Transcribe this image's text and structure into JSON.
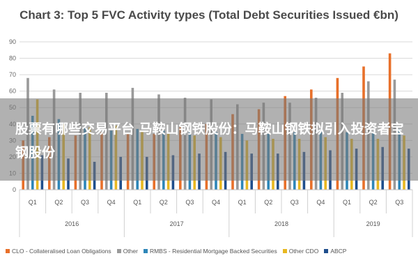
{
  "chart_data": {
    "type": "bar",
    "title": "Chart 3: Top 5 FVC Activity types (Total Debt Securities Issued €bn)",
    "xlabel": "",
    "ylabel": "",
    "ylim": [
      0,
      90
    ],
    "yticks": [
      0,
      10,
      20,
      30,
      40,
      50,
      60,
      70,
      80,
      90
    ],
    "grid": true,
    "legend_position": "bottom",
    "categories": [
      "Q1",
      "Q2",
      "Q3",
      "Q4",
      "Q1",
      "Q2",
      "Q3",
      "Q4",
      "Q1",
      "Q2",
      "Q3",
      "Q4",
      "Q1",
      "Q2",
      "Q3"
    ],
    "groups": [
      {
        "label": "2016",
        "span": 4
      },
      {
        "label": "2017",
        "span": 4
      },
      {
        "label": "2018",
        "span": 4
      },
      {
        "label": "2019",
        "span": 3
      }
    ],
    "series": [
      {
        "name": "CLO - Collateralised Loan Obligations",
        "color": "#e8702a",
        "values": [
          30,
          32,
          33,
          35,
          34,
          34,
          38,
          40,
          46,
          49,
          57,
          61,
          68,
          75,
          83
        ]
      },
      {
        "name": "Other",
        "color": "#9a9a9a",
        "values": [
          68,
          61,
          59,
          59,
          62,
          58,
          56,
          55,
          52,
          53,
          53,
          56,
          59,
          66,
          67
        ]
      },
      {
        "name": "RMBS - Residential Mortgage Backed Securities",
        "color": "#2e86b8",
        "values": [
          45,
          43,
          38,
          36,
          37,
          36,
          35,
          35,
          34,
          34,
          35,
          36,
          35,
          35,
          37
        ]
      },
      {
        "name": "Other CDO",
        "color": "#e8b820",
        "values": [
          55,
          40,
          38,
          39,
          36,
          34,
          33,
          32,
          30,
          31,
          31,
          32,
          31,
          31,
          33
        ]
      },
      {
        "name": "ABCP",
        "color": "#1f4e8c",
        "values": [
          21,
          19,
          17,
          20,
          20,
          21,
          22,
          23,
          22,
          22,
          23,
          24,
          25,
          26,
          25
        ]
      }
    ]
  },
  "overlay": {
    "text": "股票有哪些交易平台 马鞍山钢铁股份：马鞍山钢铁拟引入投资者宝钢股份"
  }
}
